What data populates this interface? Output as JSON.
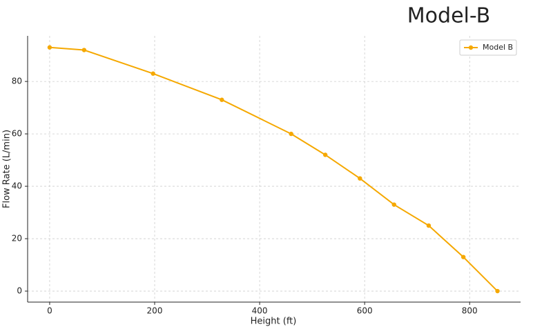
{
  "chart_data": {
    "type": "line",
    "title": "Model-B",
    "x_label": "Height (ft)",
    "y_label": "Flow Rate (L/min)",
    "x": [
      0,
      65.6,
      197,
      328,
      460,
      525,
      591,
      656,
      722,
      788,
      853
    ],
    "series": [
      {
        "name": "Model B",
        "color": "#f5a800",
        "values": [
          93,
          92,
          83,
          73,
          60,
          52,
          43,
          33,
          25,
          13,
          0
        ]
      }
    ],
    "xlim": [
      -42,
      897
    ],
    "ylim": [
      -4.2,
      97.4
    ],
    "xticks": [
      0,
      200,
      400,
      600,
      800
    ],
    "yticks": [
      0,
      20,
      40,
      60,
      80
    ],
    "grid": true,
    "legend": "upper right"
  }
}
